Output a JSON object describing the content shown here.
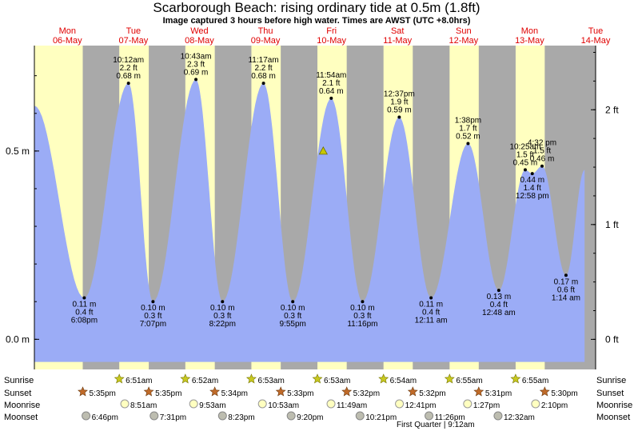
{
  "title": "Scarborough Beach: rising  ordinary tide at 0.5m (1.8ft)",
  "subtitle": "Image captured 3 hours before high water. Times are AWST (UTC +8.0hrs)",
  "colors": {
    "day": "#ffffc0",
    "night": "#a9a9a9",
    "tide": "#9bacf6",
    "day_label": "#e00000",
    "marker": "#c8c800"
  },
  "rows": {
    "sunrise": "Sunrise",
    "sunset": "Sunset",
    "moonrise": "Moonrise",
    "moonset": "Moonset"
  },
  "moon_phase_note": "First Quarter | 9:12am",
  "chart_data": {
    "type": "area",
    "x_unit": "hours since Mon 06-May 00:00 AWST",
    "ylim_m": [
      -0.08,
      0.78
    ],
    "ylim_ft": [
      -0.262,
      2.559
    ],
    "y_ticks_m": [
      {
        "v": 0.0,
        "label": "0.0 m"
      },
      {
        "v": 0.5,
        "label": "0.5 m"
      }
    ],
    "y_ticks_ft": [
      {
        "v": 0,
        "label": "0 ft"
      },
      {
        "v": 1,
        "label": "1 ft"
      },
      {
        "v": 2,
        "label": "2 ft"
      }
    ],
    "days": [
      {
        "dow": "Mon",
        "date": "06-May"
      },
      {
        "dow": "Tue",
        "date": "07-May"
      },
      {
        "dow": "Wed",
        "date": "08-May"
      },
      {
        "dow": "Thu",
        "date": "09-May"
      },
      {
        "dow": "Fri",
        "date": "10-May"
      },
      {
        "dow": "Sat",
        "date": "11-May"
      },
      {
        "dow": "Sun",
        "date": "12-May"
      },
      {
        "dow": "Mon",
        "date": "13-May"
      },
      {
        "dow": "Tue",
        "date": "14-May"
      }
    ],
    "extremes": [
      {
        "h": 18.13,
        "time": "6:08pm",
        "m": 0.11,
        "m_label": "0.11 m",
        "ft": "0.4 ft",
        "high": false
      },
      {
        "h": 34.2,
        "time": "10:12am",
        "m": 0.68,
        "m_label": "0.68 m",
        "ft": "2.2 ft",
        "high": true
      },
      {
        "h": 43.12,
        "time": "7:07pm",
        "m": 0.1,
        "m_label": "0.10 m",
        "ft": "0.3 ft",
        "high": false
      },
      {
        "h": 58.72,
        "time": "10:43am",
        "m": 0.69,
        "m_label": "0.69 m",
        "ft": "2.3 ft",
        "high": true
      },
      {
        "h": 68.37,
        "time": "8:22pm",
        "m": 0.1,
        "m_label": "0.10 m",
        "ft": "0.3 ft",
        "high": false
      },
      {
        "h": 83.28,
        "time": "11:17am",
        "m": 0.68,
        "m_label": "0.68 m",
        "ft": "2.2 ft",
        "high": true
      },
      {
        "h": 93.92,
        "time": "9:55pm",
        "m": 0.1,
        "m_label": "0.10 m",
        "ft": "0.3 ft",
        "high": false
      },
      {
        "h": 107.9,
        "time": "11:54am",
        "m": 0.64,
        "m_label": "0.64 m",
        "ft": "2.1 ft",
        "high": true
      },
      {
        "h": 119.27,
        "time": "11:16pm",
        "m": 0.1,
        "m_label": "0.10 m",
        "ft": "0.3 ft",
        "high": false
      },
      {
        "h": 132.62,
        "time": "12:37pm",
        "m": 0.59,
        "m_label": "0.59 m",
        "ft": "1.9 ft",
        "high": true
      },
      {
        "h": 144.18,
        "time": "12:11 am",
        "m": 0.11,
        "m_label": "0.11 m",
        "ft": "0.4 ft",
        "high": false
      },
      {
        "h": 157.63,
        "time": "1:38pm",
        "m": 0.52,
        "m_label": "0.52 m",
        "ft": "1.7 ft",
        "high": true
      },
      {
        "h": 168.8,
        "time": "12:48 am",
        "m": 0.13,
        "m_label": "0.13 m",
        "ft": "0.4 ft",
        "high": false
      },
      {
        "h": 178.42,
        "time": "10:25am",
        "m": 0.45,
        "m_label": "0.45 m",
        "ft": "1.5 ft",
        "high": true
      },
      {
        "h": 180.97,
        "time": "12:58 pm",
        "m": 0.44,
        "m_label": "0.44 m",
        "ft": "1.4 ft",
        "high": false
      },
      {
        "h": 184.53,
        "time": "4:32 pm",
        "m": 0.46,
        "m_label": "0.46 m",
        "ft": "1.5 ft",
        "high": true
      },
      {
        "h": 193.23,
        "time": "1:14 am",
        "m": 0.17,
        "m_label": "0.17 m",
        "ft": "0.6 ft",
        "high": false
      }
    ],
    "curve_start": {
      "h": 0.0,
      "m": 0.62
    },
    "curve_end": {
      "h": 200.0,
      "m": 0.45
    },
    "current_tide": {
      "h": 105.0,
      "m": 0.5
    },
    "sunrise": [
      {
        "h": 30.85,
        "label": "6:51am"
      },
      {
        "h": 54.87,
        "label": "6:52am"
      },
      {
        "h": 78.88,
        "label": "6:53am"
      },
      {
        "h": 102.88,
        "label": "6:53am"
      },
      {
        "h": 126.9,
        "label": "6:54am"
      },
      {
        "h": 150.92,
        "label": "6:55am"
      },
      {
        "h": 174.92,
        "label": "6:55am"
      }
    ],
    "sunset": [
      {
        "h": 17.58,
        "label": "5:35pm"
      },
      {
        "h": 41.58,
        "label": "5:35pm"
      },
      {
        "h": 65.57,
        "label": "5:34pm"
      },
      {
        "h": 89.55,
        "label": "5:33pm"
      },
      {
        "h": 113.53,
        "label": "5:32pm"
      },
      {
        "h": 137.53,
        "label": "5:32pm"
      },
      {
        "h": 161.52,
        "label": "5:31pm"
      },
      {
        "h": 185.5,
        "label": "5:30pm"
      }
    ],
    "moonrise": [
      {
        "h": 32.85,
        "label": "8:51am"
      },
      {
        "h": 57.88,
        "label": "9:53am"
      },
      {
        "h": 82.88,
        "label": "10:53am"
      },
      {
        "h": 107.82,
        "label": "11:49am"
      },
      {
        "h": 132.68,
        "label": "12:41pm"
      },
      {
        "h": 157.45,
        "label": "1:27pm"
      },
      {
        "h": 182.17,
        "label": "2:10pm"
      }
    ],
    "moonset": [
      {
        "h": 18.77,
        "label": "6:46pm"
      },
      {
        "h": 43.52,
        "label": "7:31pm"
      },
      {
        "h": 68.38,
        "label": "8:23pm"
      },
      {
        "h": 93.33,
        "label": "9:20pm"
      },
      {
        "h": 118.35,
        "label": "10:21pm"
      },
      {
        "h": 143.43,
        "label": "11:26pm"
      },
      {
        "h": 168.53,
        "label": "12:32am"
      }
    ]
  }
}
